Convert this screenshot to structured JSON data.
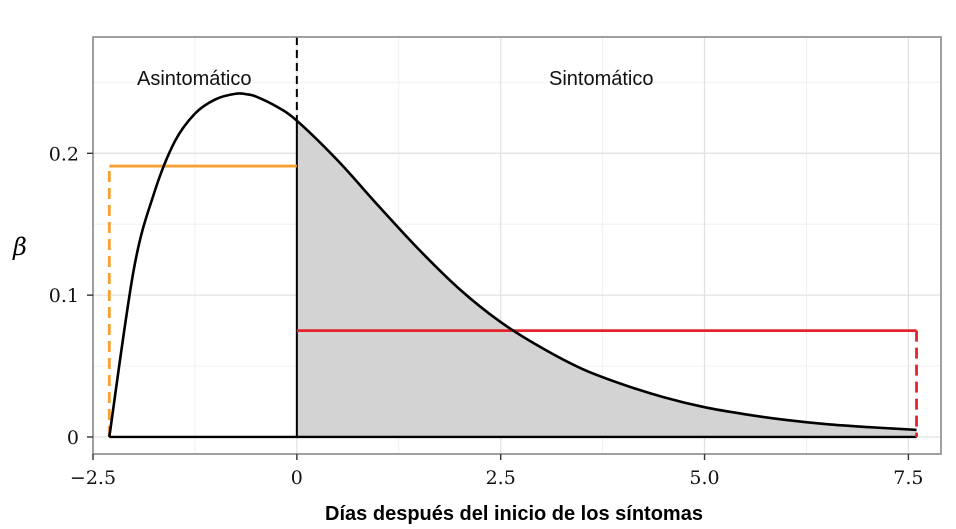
{
  "chart_data": {
    "type": "line",
    "xlabel": "Días después del inicio de los síntomas",
    "ylabel": "β",
    "xlim": [
      -2.5,
      7.9
    ],
    "ylim": [
      -0.012,
      0.282
    ],
    "x_ticks": [
      {
        "value": -2.5,
        "label": "−2.5"
      },
      {
        "value": 0,
        "label": "0"
      },
      {
        "value": 2.5,
        "label": "2.5"
      },
      {
        "value": 5.0,
        "label": "5.0"
      },
      {
        "value": 7.5,
        "label": "7.5"
      }
    ],
    "y_ticks": [
      {
        "value": 0,
        "label": "0"
      },
      {
        "value": 0.1,
        "label": "0.1"
      },
      {
        "value": 0.2,
        "label": "0.2"
      }
    ],
    "grid": true,
    "regions": [
      {
        "name": "Asintomático",
        "x_range": [
          -2.3,
          0
        ]
      },
      {
        "name": "Sintomático",
        "x_range": [
          0,
          7.6
        ]
      }
    ],
    "series": [
      {
        "x": [
          -2.3,
          -2.0,
          -1.75,
          -1.5,
          -1.25,
          -1.0,
          -0.75,
          -0.6,
          -0.5,
          -0.25,
          0,
          0.5,
          1.0,
          1.5,
          2.0,
          2.5,
          3.0,
          3.5,
          4.0,
          4.5,
          5.0,
          5.5,
          6.0,
          6.5,
          7.0,
          7.6
        ],
        "y": [
          0,
          0.118,
          0.172,
          0.208,
          0.228,
          0.238,
          0.242,
          0.2415,
          0.24,
          0.233,
          0.223,
          0.195,
          0.163,
          0.132,
          0.104,
          0.081,
          0.063,
          0.048,
          0.037,
          0.028,
          0.021,
          0.016,
          0.012,
          0.009,
          0.007,
          0.005
        ],
        "color": "#000000"
      },
      {
        "x": [
          -2.3,
          -2.3,
          0
        ],
        "y": [
          0,
          0.191,
          0.191
        ],
        "color": "#f5a030",
        "dashed_vertical": true
      },
      {
        "x": [
          0,
          7.6,
          7.6
        ],
        "y": [
          0.075,
          0.075,
          0
        ],
        "color": "#e2252b",
        "dashed_vertical": true
      }
    ],
    "shaded_area": {
      "x_range": [
        0,
        7.6
      ],
      "color": "#d3d3d3"
    },
    "divider_x": 0
  }
}
